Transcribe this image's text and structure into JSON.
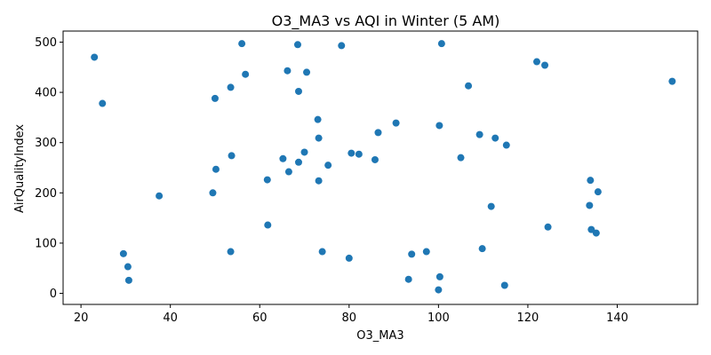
{
  "chart_data": {
    "type": "scatter",
    "title": "O3_MA3 vs AQI in Winter (5 AM)",
    "xlabel": "O3_MA3",
    "ylabel": "AirQualityIndex",
    "xlim": [
      16,
      158
    ],
    "ylim": [
      -22,
      522
    ],
    "xticks": [
      20,
      40,
      60,
      80,
      100,
      120,
      140
    ],
    "yticks": [
      0,
      100,
      200,
      300,
      400,
      500
    ],
    "grid": false,
    "legend": false,
    "color": "#1f77b4",
    "points": [
      {
        "x": 23,
        "y": 470
      },
      {
        "x": 24.8,
        "y": 378
      },
      {
        "x": 29.5,
        "y": 79
      },
      {
        "x": 30.5,
        "y": 53
      },
      {
        "x": 30.7,
        "y": 26
      },
      {
        "x": 37.5,
        "y": 194
      },
      {
        "x": 49.5,
        "y": 200
      },
      {
        "x": 50,
        "y": 388
      },
      {
        "x": 50.2,
        "y": 247
      },
      {
        "x": 53.5,
        "y": 410
      },
      {
        "x": 53.5,
        "y": 83
      },
      {
        "x": 53.7,
        "y": 274
      },
      {
        "x": 56,
        "y": 497
      },
      {
        "x": 56.8,
        "y": 436
      },
      {
        "x": 61.7,
        "y": 226
      },
      {
        "x": 61.8,
        "y": 136
      },
      {
        "x": 65.2,
        "y": 268
      },
      {
        "x": 66.2,
        "y": 443
      },
      {
        "x": 66.5,
        "y": 242
      },
      {
        "x": 68.5,
        "y": 495
      },
      {
        "x": 68.7,
        "y": 402
      },
      {
        "x": 68.7,
        "y": 261
      },
      {
        "x": 70,
        "y": 281
      },
      {
        "x": 70.5,
        "y": 440
      },
      {
        "x": 73,
        "y": 346
      },
      {
        "x": 73.2,
        "y": 309
      },
      {
        "x": 73.2,
        "y": 224
      },
      {
        "x": 74,
        "y": 83
      },
      {
        "x": 75.3,
        "y": 255
      },
      {
        "x": 78.3,
        "y": 493
      },
      {
        "x": 80,
        "y": 70
      },
      {
        "x": 80.5,
        "y": 279
      },
      {
        "x": 82.2,
        "y": 277
      },
      {
        "x": 85.8,
        "y": 266
      },
      {
        "x": 86.5,
        "y": 320
      },
      {
        "x": 90.5,
        "y": 339
      },
      {
        "x": 93.3,
        "y": 28
      },
      {
        "x": 94,
        "y": 78
      },
      {
        "x": 97.3,
        "y": 83
      },
      {
        "x": 100,
        "y": 7
      },
      {
        "x": 100.2,
        "y": 334
      },
      {
        "x": 100.3,
        "y": 33
      },
      {
        "x": 100.7,
        "y": 497
      },
      {
        "x": 105,
        "y": 270
      },
      {
        "x": 106.7,
        "y": 413
      },
      {
        "x": 109.2,
        "y": 316
      },
      {
        "x": 109.8,
        "y": 89
      },
      {
        "x": 111.8,
        "y": 173
      },
      {
        "x": 112.7,
        "y": 309
      },
      {
        "x": 114.8,
        "y": 16
      },
      {
        "x": 115.2,
        "y": 295
      },
      {
        "x": 122,
        "y": 461
      },
      {
        "x": 123.8,
        "y": 454
      },
      {
        "x": 124.5,
        "y": 132
      },
      {
        "x": 133.8,
        "y": 175
      },
      {
        "x": 134,
        "y": 225
      },
      {
        "x": 134.2,
        "y": 127
      },
      {
        "x": 135.3,
        "y": 120
      },
      {
        "x": 135.7,
        "y": 202
      },
      {
        "x": 152.3,
        "y": 422
      }
    ]
  }
}
